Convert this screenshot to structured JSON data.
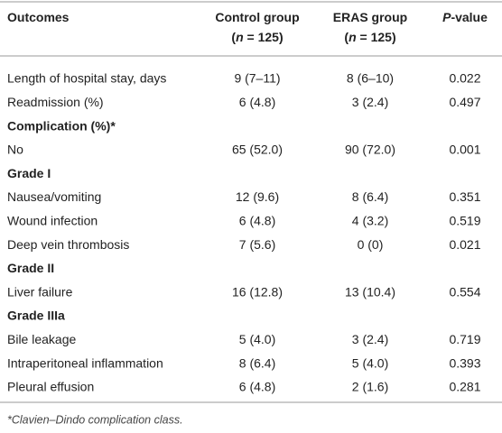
{
  "table": {
    "header": [
      [
        [
          {
            "text": "Outcomes"
          }
        ]
      ],
      [
        [
          {
            "text": "Control group"
          }
        ],
        [
          {
            "text": "("
          },
          {
            "text": "n",
            "italic": true
          },
          {
            "text": " = 125)"
          }
        ]
      ],
      [
        [
          {
            "text": "ERAS group"
          }
        ],
        [
          {
            "text": "("
          },
          {
            "text": "n",
            "italic": true
          },
          {
            "text": " = 125)"
          }
        ]
      ],
      [
        [
          {
            "text": "P",
            "italic": true
          },
          {
            "text": "-value"
          }
        ]
      ]
    ],
    "rows": [
      {
        "cells": [
          "Length of hospital stay, days",
          "9 (7–11)",
          "8 (6–10)",
          "0.022"
        ]
      },
      {
        "cells": [
          "Readmission (%)",
          "6 (4.8)",
          "3 (2.4)",
          "0.497"
        ]
      },
      {
        "section": "Complication (%)*"
      },
      {
        "cells": [
          "No",
          "65 (52.0)",
          "90 (72.0)",
          "0.001"
        ]
      },
      {
        "section": "Grade I"
      },
      {
        "cells": [
          "Nausea/vomiting",
          "12 (9.6)",
          "8 (6.4)",
          "0.351"
        ]
      },
      {
        "cells": [
          "Wound infection",
          "6 (4.8)",
          "4 (3.2)",
          "0.519"
        ]
      },
      {
        "cells": [
          "Deep vein thrombosis",
          "7 (5.6)",
          "0 (0)",
          "0.021"
        ]
      },
      {
        "section": "Grade II"
      },
      {
        "cells": [
          "Liver failure",
          "16 (12.8)",
          "13 (10.4)",
          "0.554"
        ]
      },
      {
        "section": "Grade IIIa"
      },
      {
        "cells": [
          "Bile leakage",
          "5 (4.0)",
          "3 (2.4)",
          "0.719"
        ]
      },
      {
        "cells": [
          "Intraperitoneal inflammation",
          "8 (6.4)",
          "5 (4.0)",
          "0.393"
        ]
      },
      {
        "cells": [
          "Pleural effusion",
          "6 (4.8)",
          "2 (1.6)",
          "0.281"
        ]
      }
    ],
    "footnote": "*Clavien–Dindo complication class."
  }
}
